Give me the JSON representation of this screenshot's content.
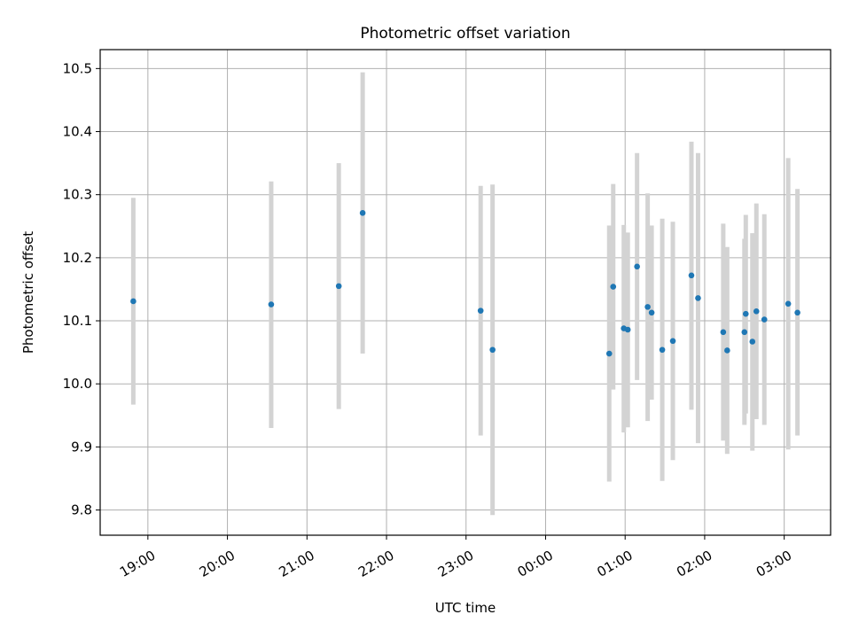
{
  "chart_data": {
    "type": "scatter",
    "title": "Photometric offset variation",
    "xlabel": "UTC time",
    "ylabel": "Photometric offset",
    "x_is_time": true,
    "x_ticks": [
      "19:00",
      "20:00",
      "21:00",
      "22:00",
      "23:00",
      "00:00",
      "01:00",
      "02:00",
      "03:00"
    ],
    "xlim": [
      "18:24",
      "03:35"
    ],
    "ylim": [
      9.76,
      10.53
    ],
    "y_ticks": [
      9.8,
      9.9,
      10.0,
      10.1,
      10.2,
      10.3,
      10.4,
      10.5
    ],
    "grid": true,
    "colors": {
      "point": "#1f77b4",
      "errorbar": "#d3d3d3",
      "grid": "#b0b0b0"
    },
    "points": [
      {
        "x": "18:49",
        "y": 10.131,
        "lo": 9.967,
        "hi": 10.295
      },
      {
        "x": "20:33",
        "y": 10.126,
        "lo": 9.93,
        "hi": 10.321
      },
      {
        "x": "21:24",
        "y": 10.155,
        "lo": 9.96,
        "hi": 10.35
      },
      {
        "x": "21:42",
        "y": 10.271,
        "lo": 10.048,
        "hi": 10.494
      },
      {
        "x": "23:11",
        "y": 10.116,
        "lo": 9.918,
        "hi": 10.314
      },
      {
        "x": "23:20",
        "y": 10.054,
        "lo": 9.792,
        "hi": 10.316
      },
      {
        "x": "00:48",
        "y": 10.048,
        "lo": 9.845,
        "hi": 10.251
      },
      {
        "x": "00:51",
        "y": 10.154,
        "lo": 9.991,
        "hi": 10.317
      },
      {
        "x": "00:59",
        "y": 10.088,
        "lo": 9.923,
        "hi": 10.252
      },
      {
        "x": "01:02",
        "y": 10.086,
        "lo": 9.931,
        "hi": 10.24
      },
      {
        "x": "01:09",
        "y": 10.186,
        "lo": 10.006,
        "hi": 10.366
      },
      {
        "x": "01:17",
        "y": 10.122,
        "lo": 9.941,
        "hi": 10.302
      },
      {
        "x": "01:20",
        "y": 10.113,
        "lo": 9.975,
        "hi": 10.251
      },
      {
        "x": "01:28",
        "y": 10.054,
        "lo": 9.846,
        "hi": 10.262
      },
      {
        "x": "01:36",
        "y": 10.068,
        "lo": 9.879,
        "hi": 10.257
      },
      {
        "x": "01:50",
        "y": 10.172,
        "lo": 9.959,
        "hi": 10.384
      },
      {
        "x": "01:55",
        "y": 10.136,
        "lo": 9.906,
        "hi": 10.366
      },
      {
        "x": "02:14",
        "y": 10.082,
        "lo": 9.91,
        "hi": 10.254
      },
      {
        "x": "02:17",
        "y": 10.053,
        "lo": 9.889,
        "hi": 10.217
      },
      {
        "x": "02:30",
        "y": 10.082,
        "lo": 9.935,
        "hi": 10.23
      },
      {
        "x": "02:31",
        "y": 10.111,
        "lo": 9.953,
        "hi": 10.268
      },
      {
        "x": "02:36",
        "y": 10.067,
        "lo": 9.894,
        "hi": 10.239
      },
      {
        "x": "02:39",
        "y": 10.115,
        "lo": 9.944,
        "hi": 10.286
      },
      {
        "x": "02:45",
        "y": 10.102,
        "lo": 9.935,
        "hi": 10.269
      },
      {
        "x": "03:03",
        "y": 10.127,
        "lo": 9.896,
        "hi": 10.358
      },
      {
        "x": "03:10",
        "y": 10.113,
        "lo": 9.918,
        "hi": 10.309
      }
    ]
  }
}
